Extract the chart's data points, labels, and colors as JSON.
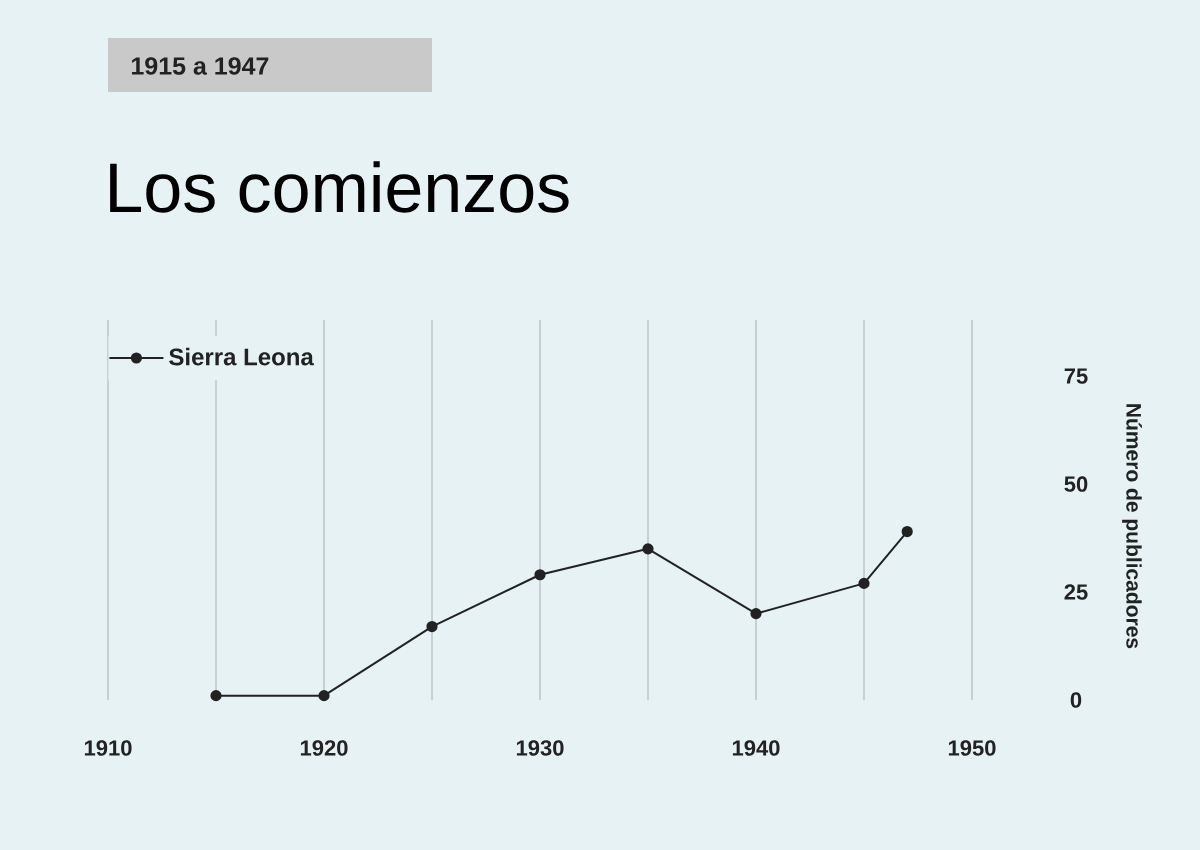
{
  "chart_data": {
    "type": "line",
    "title": "Los comienzos",
    "subtitle": "1915 a 1947",
    "ylabel": "Número de publicadores",
    "x": [
      1915,
      1920,
      1925,
      1930,
      1935,
      1940,
      1945,
      1947
    ],
    "series": [
      {
        "name": "Sierra Leona",
        "color": "#222222",
        "values": [
          1,
          1,
          17,
          29,
          35,
          20,
          27,
          39
        ]
      }
    ],
    "xlim": [
      1910,
      1950
    ],
    "xticks": [
      1910,
      {
        "value": 1915,
        "label": null
      },
      1920,
      {
        "value": 1925,
        "label": null
      },
      1930,
      {
        "value": 1935,
        "label": null
      },
      1940,
      {
        "value": 1945,
        "label": null
      },
      1950
    ],
    "ylim": [
      0,
      88
    ],
    "yticks": [
      0,
      25,
      50,
      75
    ],
    "grid": "x",
    "legend": "top left",
    "marker": "circle",
    "line_style": "solid"
  }
}
